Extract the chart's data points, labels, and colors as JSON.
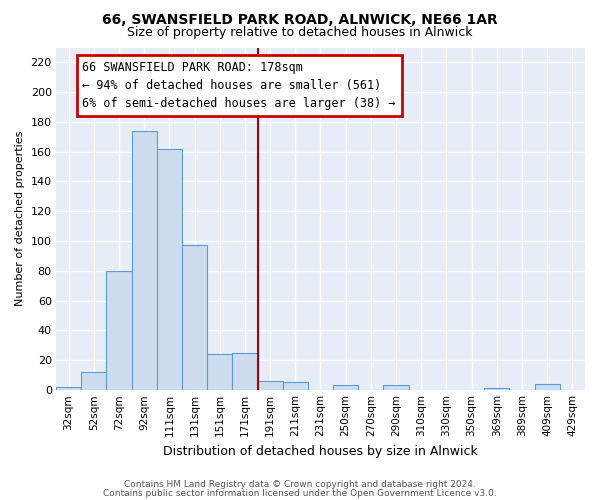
{
  "title": "66, SWANSFIELD PARK ROAD, ALNWICK, NE66 1AR",
  "subtitle": "Size of property relative to detached houses in Alnwick",
  "xlabel": "Distribution of detached houses by size in Alnwick",
  "ylabel": "Number of detached properties",
  "bar_labels": [
    "32sqm",
    "52sqm",
    "72sqm",
    "92sqm",
    "111sqm",
    "131sqm",
    "151sqm",
    "171sqm",
    "191sqm",
    "211sqm",
    "231sqm",
    "250sqm",
    "270sqm",
    "290sqm",
    "310sqm",
    "330sqm",
    "350sqm",
    "369sqm",
    "389sqm",
    "409sqm",
    "429sqm"
  ],
  "bar_heights": [
    2,
    12,
    80,
    174,
    162,
    97,
    24,
    25,
    6,
    5,
    0,
    3,
    0,
    3,
    0,
    0,
    0,
    1,
    0,
    4,
    0
  ],
  "bar_color": "#cddcee",
  "bar_edge_color": "#5b9bd5",
  "vline_x_index": 7.5,
  "vline_color": "#aa0000",
  "annotation_text": "66 SWANSFIELD PARK ROAD: 178sqm\n← 94% of detached houses are smaller (561)\n6% of semi-detached houses are larger (38) →",
  "annotation_box_facecolor": "#ffffff",
  "annotation_box_edgecolor": "#cc0000",
  "ylim": [
    0,
    230
  ],
  "yticks": [
    0,
    20,
    40,
    60,
    80,
    100,
    120,
    140,
    160,
    180,
    200,
    220
  ],
  "footnote1": "Contains HM Land Registry data © Crown copyright and database right 2024.",
  "footnote2": "Contains public sector information licensed under the Open Government Licence v3.0.",
  "fig_bg_color": "#ffffff",
  "plot_bg_color": "#e8eef7",
  "grid_color": "#ffffff",
  "title_fontsize": 10,
  "subtitle_fontsize": 9,
  "ylabel_fontsize": 8,
  "xlabel_fontsize": 9,
  "tick_fontsize": 8,
  "xtick_fontsize": 7.5
}
